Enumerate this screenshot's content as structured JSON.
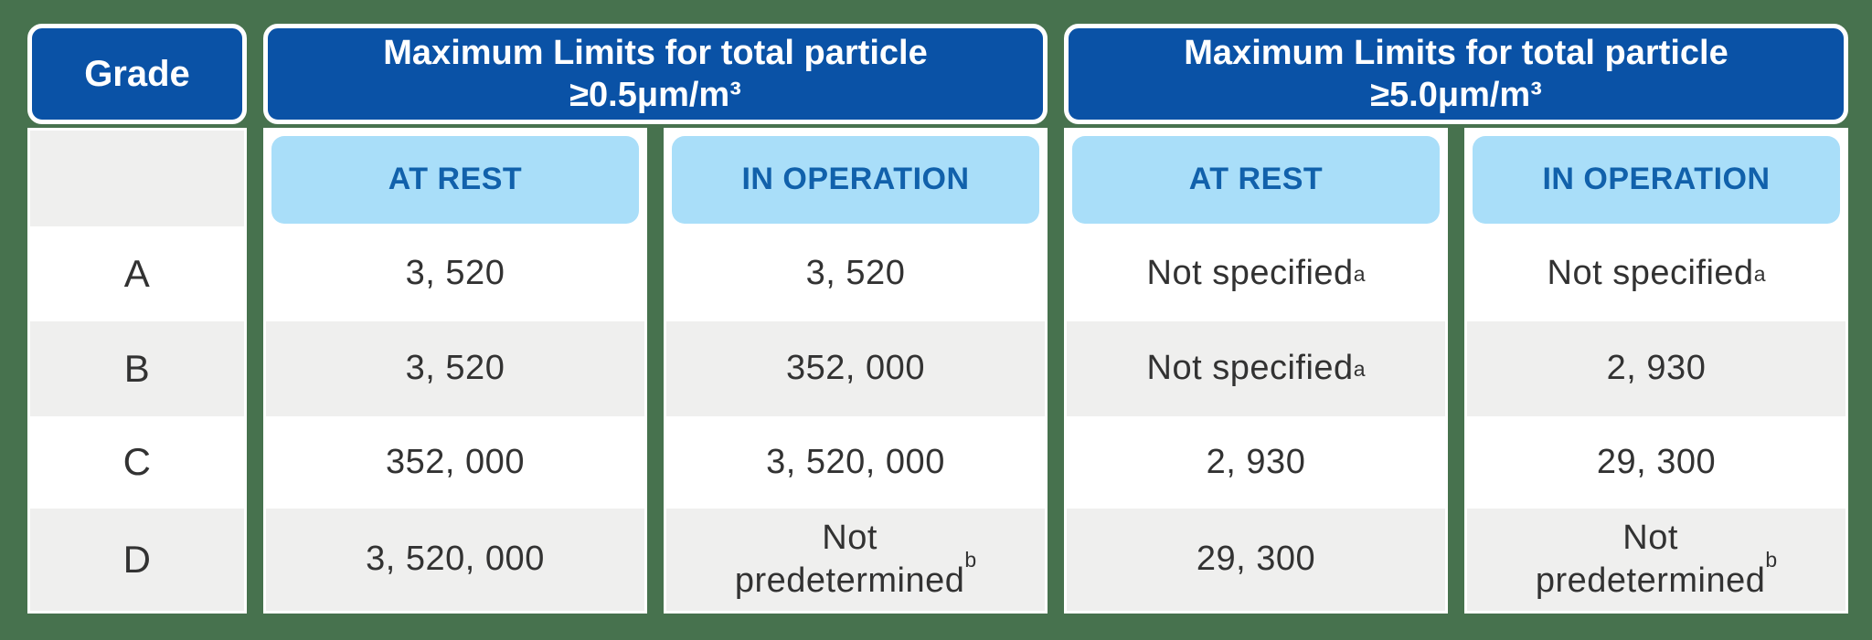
{
  "colors": {
    "background_green": "#47724e",
    "header_blue": "#0a52a6",
    "subheader_light_blue": "#a9def9",
    "subheader_text_blue": "#1161ab",
    "row_alt_gray": "#efefee",
    "data_text": "#323232",
    "header_text": "#ffffff"
  },
  "chart_data": {
    "type": "table",
    "grade_header": "Grade",
    "groups": [
      {
        "title": "Maximum Limits for total particle ≥0.5μm/m³",
        "line1": "Maximum Limits for total particle",
        "line2": "≥0.5μm/m³",
        "subcolumns": [
          "AT REST",
          "IN OPERATION"
        ]
      },
      {
        "title": "Maximum Limits for total particle ≥5.0μm/m³",
        "line1": "Maximum Limits for total particle",
        "line2": "≥5.0μm/m³",
        "subcolumns": [
          "AT REST",
          "IN OPERATION"
        ]
      }
    ],
    "subheaders": {
      "at_rest": "AT REST",
      "in_operation": "IN OPERATION"
    },
    "footnote_markers": [
      "a",
      "b"
    ],
    "rows": [
      {
        "grade": "A",
        "cells": [
          {
            "value": "3, 520"
          },
          {
            "value": "3, 520"
          },
          {
            "value": "Not specified",
            "sup": "a"
          },
          {
            "value": "Not specified",
            "sup": "a"
          }
        ]
      },
      {
        "grade": "B",
        "cells": [
          {
            "value": "3, 520"
          },
          {
            "value": "352, 000"
          },
          {
            "value": "Not specified",
            "sup": "a"
          },
          {
            "value": "2, 930"
          }
        ]
      },
      {
        "grade": "C",
        "cells": [
          {
            "value": "352, 000"
          },
          {
            "value": "3, 520, 000"
          },
          {
            "value": "2, 930"
          },
          {
            "value": "29, 300"
          }
        ]
      },
      {
        "grade": "D",
        "cells": [
          {
            "value": "3, 520, 000"
          },
          {
            "value": "Not\npredetermined",
            "sup": "b"
          },
          {
            "value": "29, 300"
          },
          {
            "value": "Not\npredetermined",
            "sup": "b"
          }
        ]
      }
    ]
  }
}
